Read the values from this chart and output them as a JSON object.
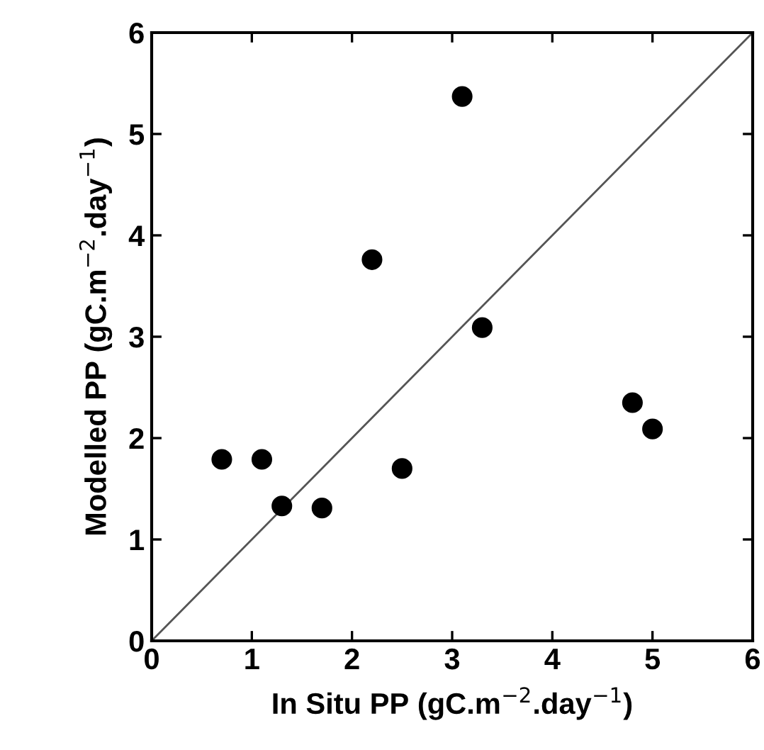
{
  "chart_data": {
    "type": "scatter",
    "xlabel": "In Situ PP (gC.m$^{−2}$.day$^{−1}$)",
    "ylabel": "Modelled PP (gC.m$^{−2}$.day$^{−1}$)",
    "xlim": [
      0,
      6
    ],
    "ylim": [
      0,
      6
    ],
    "xticks": [
      0,
      1,
      2,
      3,
      4,
      5,
      6
    ],
    "yticks": [
      0,
      1,
      2,
      3,
      4,
      5,
      6
    ],
    "grid": false,
    "series": [
      {
        "marker": "circle",
        "color": "#000000",
        "x": [
          0.7,
          1.1,
          1.3,
          1.7,
          2.2,
          2.5,
          3.1,
          3.3,
          4.8,
          5.0
        ],
        "values": [
          1.79,
          1.79,
          1.33,
          1.31,
          3.76,
          1.7,
          5.37,
          3.09,
          2.35,
          2.09
        ]
      },
      {
        "type": "line",
        "marker": "none",
        "color": "#555555",
        "line_style": "solid",
        "x": [
          0,
          6
        ],
        "values": [
          0,
          6
        ]
      }
    ]
  }
}
